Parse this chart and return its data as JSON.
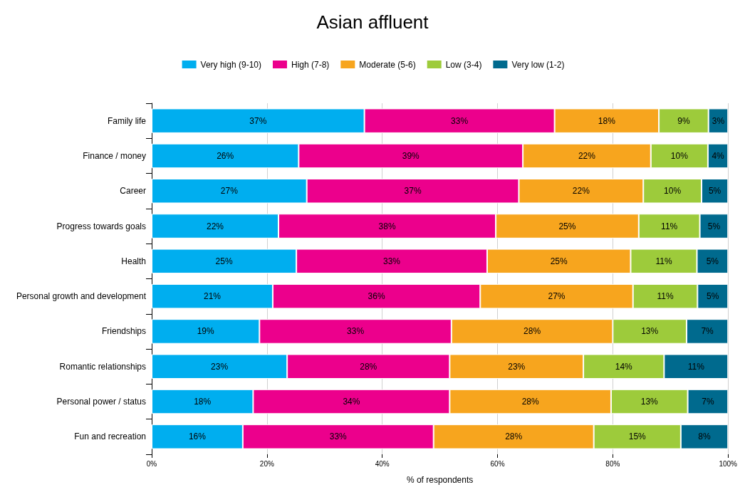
{
  "chart_data": {
    "type": "bar",
    "title": "Asian affluent",
    "xlabel": "% of respondents",
    "orientation": "horizontal",
    "stacked": true,
    "legend": "top",
    "grid": "x",
    "categories": [
      "Family life",
      "Finance / money",
      "Career",
      "Progress towards goals",
      "Health",
      "Personal growth and development",
      "Friendships",
      "Romantic relationships",
      "Personal power / status",
      "Fun and recreation"
    ],
    "xlim": [
      0,
      100
    ],
    "xticks": [
      {
        "value": 0,
        "label": "0%"
      },
      {
        "value": 20,
        "label": "20%"
      },
      {
        "value": 40,
        "label": "40%"
      },
      {
        "value": 60,
        "label": "60%"
      },
      {
        "value": 80,
        "label": "80%"
      },
      {
        "value": 100,
        "label": "100%"
      }
    ],
    "series": [
      {
        "name": "Very high (9-10)",
        "color": "#00aeef",
        "values": [
          36.9,
          25.5,
          26.9,
          22.0,
          25.1,
          21.0,
          18.7,
          23.5,
          17.6,
          15.8
        ],
        "value_labels": [
          "37%",
          "26%",
          "27%",
          "22%",
          "25%",
          "21%",
          "19%",
          "23%",
          "18%",
          "16%"
        ]
      },
      {
        "name": "High (7-8)",
        "color": "#ec008c",
        "values": [
          33.0,
          38.9,
          36.8,
          37.7,
          33.1,
          36.0,
          33.3,
          28.2,
          34.1,
          33.1
        ],
        "value_labels": [
          "33%",
          "39%",
          "37%",
          "38%",
          "33%",
          "36%",
          "33%",
          "28%",
          "34%",
          "33%"
        ]
      },
      {
        "name": "Moderate (5-6)",
        "color": "#f7a51e",
        "values": [
          18.1,
          22.2,
          21.6,
          24.8,
          24.9,
          26.5,
          28.0,
          23.2,
          28.0,
          27.8
        ],
        "value_labels": [
          "18%",
          "22%",
          "22%",
          "25%",
          "25%",
          "27%",
          "28%",
          "23%",
          "28%",
          "28%"
        ]
      },
      {
        "name": "Low (3-4)",
        "color": "#9dcb3b",
        "values": [
          8.6,
          9.9,
          10.1,
          10.6,
          11.5,
          11.2,
          12.8,
          14.0,
          13.3,
          15.1
        ],
        "value_labels": [
          "9%",
          "10%",
          "10%",
          "11%",
          "11%",
          "11%",
          "13%",
          "14%",
          "13%",
          "15%"
        ]
      },
      {
        "name": "Very low (1-2)",
        "color": "#006a8e",
        "values": [
          3.4,
          3.5,
          4.6,
          4.9,
          5.4,
          5.3,
          7.2,
          11.1,
          7.0,
          8.2
        ],
        "value_labels": [
          "3%",
          "4%",
          "5%",
          "5%",
          "5%",
          "5%",
          "7%",
          "11%",
          "7%",
          "8%"
        ]
      }
    ]
  }
}
